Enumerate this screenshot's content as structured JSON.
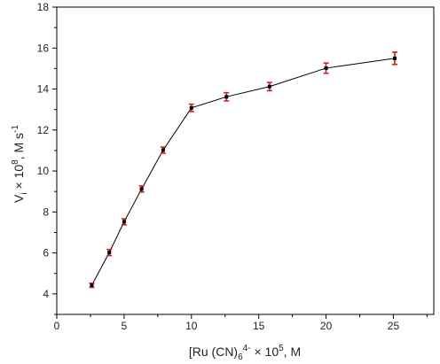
{
  "chart_data": {
    "type": "scatter",
    "x": [
      2.6,
      3.9,
      5.0,
      6.3,
      7.9,
      10.0,
      12.6,
      15.8,
      20.0,
      25.1
    ],
    "y": [
      4.42,
      6.02,
      7.52,
      9.12,
      11.02,
      13.08,
      13.62,
      14.12,
      15.02,
      15.5
    ],
    "y_err": [
      0.1,
      0.15,
      0.15,
      0.15,
      0.15,
      0.18,
      0.2,
      0.2,
      0.25,
      0.3
    ],
    "xlim": [
      0,
      28
    ],
    "ylim": [
      3,
      18
    ],
    "x_ticks": [
      0,
      5,
      10,
      15,
      20,
      25
    ],
    "y_ticks": [
      4,
      6,
      8,
      10,
      12,
      14,
      16,
      18
    ],
    "x_tick_labels": [
      "0",
      "5",
      "10",
      "15",
      "20",
      "25"
    ],
    "y_tick_labels": [
      "4",
      "6",
      "8",
      "10",
      "12",
      "14",
      "16",
      "18"
    ],
    "xlabel": {
      "p1": "[Ru (CN)",
      "sub1": "6",
      "sup1": "4-",
      "p2": " × 10",
      "sup2": "5",
      "p3": ", M"
    },
    "ylabel": {
      "p1": "V",
      "sub1": "i",
      "p2": " × 10",
      "sup1": "8",
      "p3": ", M s",
      "sup2": "-1"
    },
    "grid": false,
    "legend": "none",
    "colors": {
      "line": "#000000",
      "marker": "#000000",
      "error_bar": "#cc2222",
      "axis": "#000000"
    }
  }
}
